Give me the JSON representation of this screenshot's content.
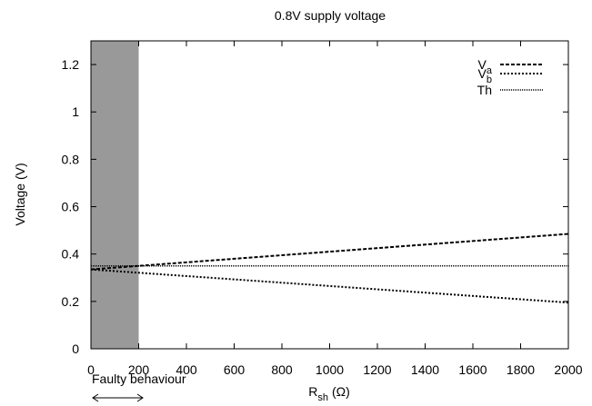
{
  "chart_data": {
    "type": "line",
    "title": "0.8V supply voltage",
    "xlabel_main": "R",
    "xlabel_sub": "sh",
    "xlabel_unit": "(Ω)",
    "ylabel": "Voltage (V)",
    "xlim": [
      0,
      2000
    ],
    "ylim": [
      0,
      1.3
    ],
    "xticks": [
      0,
      200,
      400,
      600,
      800,
      1000,
      1200,
      1400,
      1600,
      1800,
      2000
    ],
    "yticks": [
      0,
      0.2,
      0.4,
      0.6,
      0.8,
      1,
      1.2
    ],
    "grid": false,
    "legend_position": "top-right",
    "series": [
      {
        "name": "V",
        "name_sub": "a",
        "style": "dashed",
        "x": [
          0,
          2000
        ],
        "y": [
          0.335,
          0.485
        ]
      },
      {
        "name": "V",
        "name_sub": "b",
        "style": "dotted",
        "x": [
          0,
          2000
        ],
        "y": [
          0.335,
          0.195
        ]
      },
      {
        "name": "Th",
        "name_sub": "",
        "style": "finedotted",
        "x": [
          0,
          2000
        ],
        "y": [
          0.35,
          0.35
        ]
      }
    ],
    "shaded_region": {
      "x": [
        0,
        200
      ],
      "color": "#999999"
    },
    "annotation": "Faulty behaviour",
    "annotation_x_range": [
      0,
      200
    ]
  }
}
